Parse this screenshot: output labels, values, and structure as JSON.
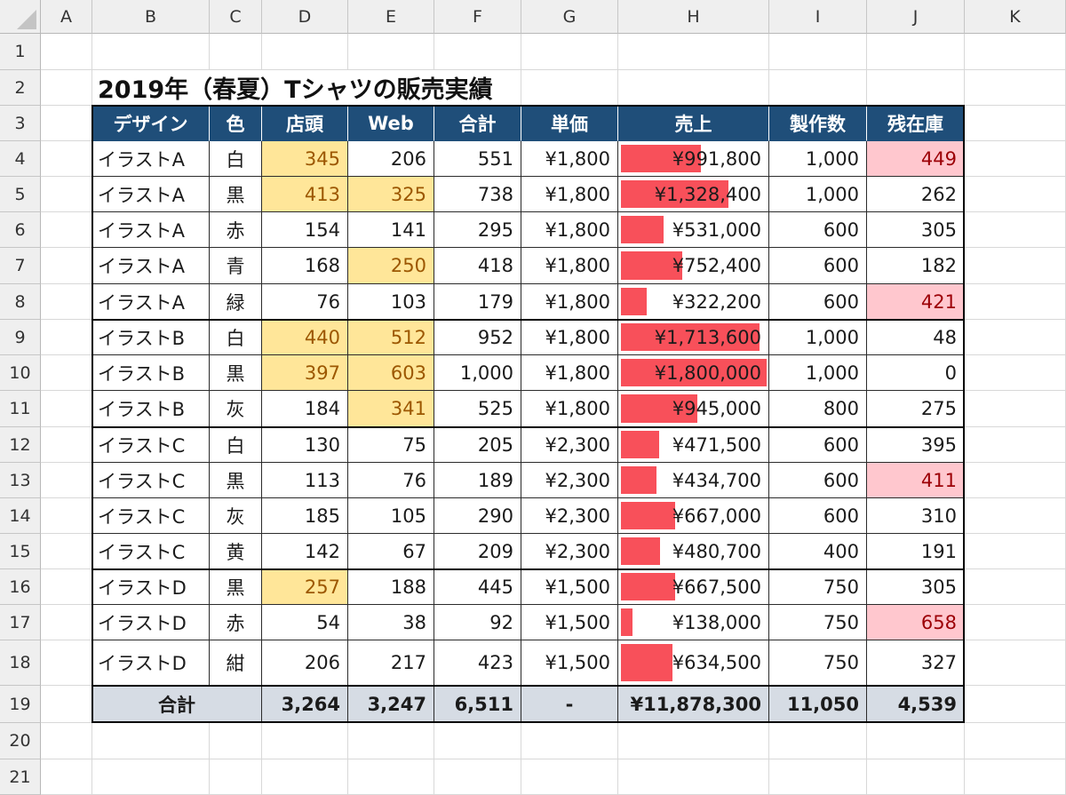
{
  "column_headers": [
    "A",
    "B",
    "C",
    "D",
    "E",
    "F",
    "G",
    "H",
    "I",
    "J",
    "K"
  ],
  "row_headers": [
    "1",
    "2",
    "3",
    "4",
    "5",
    "6",
    "7",
    "8",
    "9",
    "10",
    "11",
    "12",
    "13",
    "14",
    "15",
    "16",
    "17",
    "18",
    "19",
    "20",
    "21"
  ],
  "title": "2019年（春夏）Tシャツの販売実績",
  "table": {
    "headers": [
      "デザイン",
      "色",
      "店頭",
      "Web",
      "合計",
      "単価",
      "売上",
      "製作数",
      "残在庫"
    ],
    "rows": [
      {
        "design": "イラストA",
        "color": "白",
        "store": "345",
        "web": "206",
        "total": "551",
        "price": "¥1,800",
        "sales": "¥991,800",
        "sales_value": 991800,
        "made": "1,000",
        "stock": "449",
        "store_hl": true,
        "web_hl": false,
        "stock_hl": true
      },
      {
        "design": "イラストA",
        "color": "黒",
        "store": "413",
        "web": "325",
        "total": "738",
        "price": "¥1,800",
        "sales": "¥1,328,400",
        "sales_value": 1328400,
        "made": "1,000",
        "stock": "262",
        "store_hl": true,
        "web_hl": true,
        "stock_hl": false
      },
      {
        "design": "イラストA",
        "color": "赤",
        "store": "154",
        "web": "141",
        "total": "295",
        "price": "¥1,800",
        "sales": "¥531,000",
        "sales_value": 531000,
        "made": "600",
        "stock": "305",
        "store_hl": false,
        "web_hl": false,
        "stock_hl": false
      },
      {
        "design": "イラストA",
        "color": "青",
        "store": "168",
        "web": "250",
        "total": "418",
        "price": "¥1,800",
        "sales": "¥752,400",
        "sales_value": 752400,
        "made": "600",
        "stock": "182",
        "store_hl": false,
        "web_hl": true,
        "stock_hl": false
      },
      {
        "design": "イラストA",
        "color": "緑",
        "store": "76",
        "web": "103",
        "total": "179",
        "price": "¥1,800",
        "sales": "¥322,200",
        "sales_value": 322200,
        "made": "600",
        "stock": "421",
        "store_hl": false,
        "web_hl": false,
        "stock_hl": true
      },
      {
        "design": "イラストB",
        "color": "白",
        "store": "440",
        "web": "512",
        "total": "952",
        "price": "¥1,800",
        "sales": "¥1,713,600",
        "sales_value": 1713600,
        "made": "1,000",
        "stock": "48",
        "store_hl": true,
        "web_hl": true,
        "stock_hl": false
      },
      {
        "design": "イラストB",
        "color": "黒",
        "store": "397",
        "web": "603",
        "total": "1,000",
        "price": "¥1,800",
        "sales": "¥1,800,000",
        "sales_value": 1800000,
        "made": "1,000",
        "stock": "0",
        "store_hl": true,
        "web_hl": true,
        "stock_hl": false
      },
      {
        "design": "イラストB",
        "color": "灰",
        "store": "184",
        "web": "341",
        "total": "525",
        "price": "¥1,800",
        "sales": "¥945,000",
        "sales_value": 945000,
        "made": "800",
        "stock": "275",
        "store_hl": false,
        "web_hl": true,
        "stock_hl": false
      },
      {
        "design": "イラストC",
        "color": "白",
        "store": "130",
        "web": "75",
        "total": "205",
        "price": "¥2,300",
        "sales": "¥471,500",
        "sales_value": 471500,
        "made": "600",
        "stock": "395",
        "store_hl": false,
        "web_hl": false,
        "stock_hl": false
      },
      {
        "design": "イラストC",
        "color": "黒",
        "store": "113",
        "web": "76",
        "total": "189",
        "price": "¥2,300",
        "sales": "¥434,700",
        "sales_value": 434700,
        "made": "600",
        "stock": "411",
        "store_hl": false,
        "web_hl": false,
        "stock_hl": true
      },
      {
        "design": "イラストC",
        "color": "灰",
        "store": "185",
        "web": "105",
        "total": "290",
        "price": "¥2,300",
        "sales": "¥667,000",
        "sales_value": 667000,
        "made": "600",
        "stock": "310",
        "store_hl": false,
        "web_hl": false,
        "stock_hl": false
      },
      {
        "design": "イラストC",
        "color": "黄",
        "store": "142",
        "web": "67",
        "total": "209",
        "price": "¥2,300",
        "sales": "¥480,700",
        "sales_value": 480700,
        "made": "400",
        "stock": "191",
        "store_hl": false,
        "web_hl": false,
        "stock_hl": false
      },
      {
        "design": "イラストD",
        "color": "黒",
        "store": "257",
        "web": "188",
        "total": "445",
        "price": "¥1,500",
        "sales": "¥667,500",
        "sales_value": 667500,
        "made": "750",
        "stock": "305",
        "store_hl": true,
        "web_hl": false,
        "stock_hl": false
      },
      {
        "design": "イラストD",
        "color": "赤",
        "store": "54",
        "web": "38",
        "total": "92",
        "price": "¥1,500",
        "sales": "¥138,000",
        "sales_value": 138000,
        "made": "750",
        "stock": "658",
        "store_hl": false,
        "web_hl": false,
        "stock_hl": true
      },
      {
        "design": "イラストD",
        "color": "紺",
        "store": "206",
        "web": "217",
        "total": "423",
        "price": "¥1,500",
        "sales": "¥634,500",
        "sales_value": 634500,
        "made": "750",
        "stock": "327",
        "store_hl": false,
        "web_hl": false,
        "stock_hl": false
      }
    ],
    "totals": {
      "label": "合計",
      "store": "3,264",
      "web": "3,247",
      "total": "6,511",
      "price": "-",
      "sales": "¥11,878,300",
      "made": "11,050",
      "stock": "4,539"
    },
    "sales_bar_max": 1800000
  },
  "colors": {
    "header_bg": "#1f4e79",
    "highlight_yellow": "#ffe699",
    "highlight_pink": "#ffc7ce",
    "data_bar": "#f8505a",
    "total_row_bg": "#d6dce4"
  }
}
